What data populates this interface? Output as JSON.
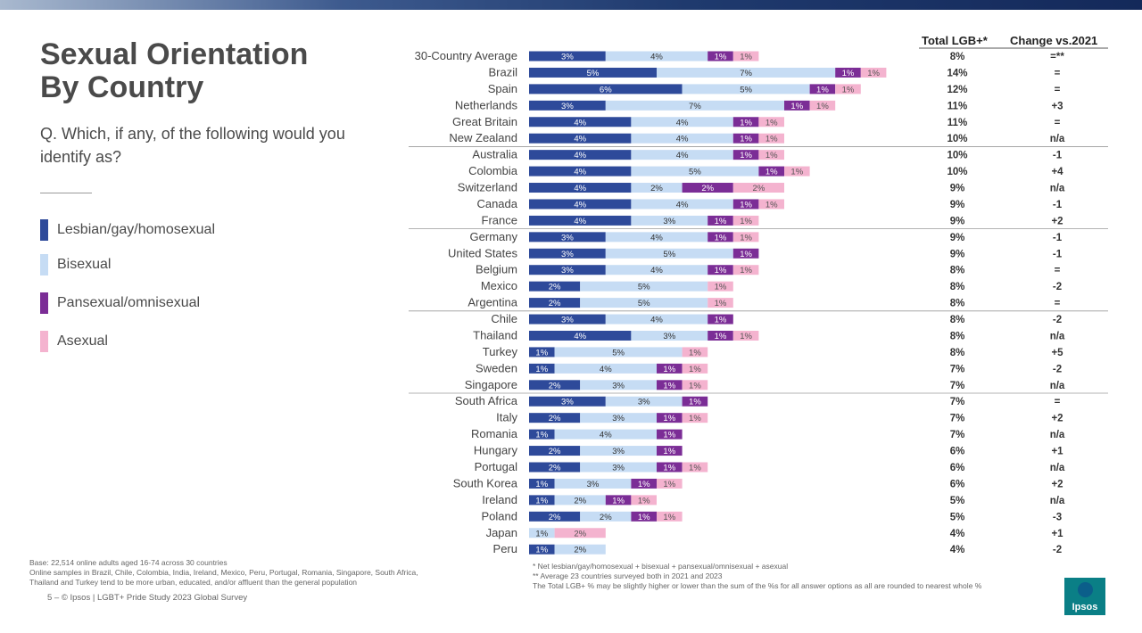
{
  "page": {
    "title_line1": "Sexual Orientation",
    "title_line2": "By Country",
    "question": "Q. Which, if any, of the following would you identify as?",
    "col_total": "Total LGB+*",
    "col_change": "Change vs.2021",
    "footnote_base_1": "Base: 22,514 online adults aged 16-74 across 30 countries",
    "footnote_base_2": "Online samples in Brazil, Chile, Colombia, India, Ireland, Mexico, Peru, Portugal, Romania, Singapore, South Africa,",
    "footnote_base_3": "Thailand and Turkey tend to be more urban, educated, and/or affluent than the general population",
    "footer": "5 –   © Ipsos | LGBT+ Pride Study 2023 Global Survey",
    "note_1": "* Net lesbian/gay/homosexual + bisexual + pansexual/omnisexual + asexual",
    "note_2": "** Average 23 countries surveyed both in 2021 and 2023",
    "note_3": "The Total LGB+ % may be slightly higher or lower than the sum of the %s for all answer options as all are rounded to nearest whole %",
    "logo_text": "Ipsos"
  },
  "legend": [
    {
      "label": "Lesbian/gay/homosexual",
      "color": "#2e4a9a"
    },
    {
      "label": "Bisexual",
      "color": "#c6dcf4"
    },
    {
      "label": "Pansexual/omnisexual",
      "color": "#7b2d96"
    },
    {
      "label": "Asexual",
      "color": "#f4b3cf"
    }
  ],
  "chart_data": {
    "type": "bar",
    "stacked": true,
    "orientation": "horizontal",
    "categories": [
      "30-Country Average",
      "Brazil",
      "Spain",
      "Netherlands",
      "Great Britain",
      "New Zealand",
      "Australia",
      "Colombia",
      "Switzerland",
      "Canada",
      "France",
      "Germany",
      "United States",
      "Belgium",
      "Mexico",
      "Argentina",
      "Chile",
      "Thailand",
      "Turkey",
      "Sweden",
      "Singapore",
      "South Africa",
      "Italy",
      "Romania",
      "Hungary",
      "Portugal",
      "South Korea",
      "Ireland",
      "Poland",
      "Japan",
      "Peru"
    ],
    "series": [
      {
        "name": "Lesbian/gay/homosexual",
        "color": "#2e4a9a",
        "values": [
          3,
          5,
          6,
          3,
          4,
          4,
          4,
          4,
          4,
          4,
          4,
          3,
          3,
          3,
          2,
          2,
          3,
          4,
          1,
          1,
          2,
          3,
          2,
          1,
          2,
          2,
          1,
          1,
          2,
          null,
          1
        ]
      },
      {
        "name": "Bisexual",
        "color": "#c6dcf4",
        "values": [
          4,
          7,
          5,
          7,
          4,
          4,
          4,
          5,
          2,
          4,
          3,
          4,
          5,
          4,
          5,
          5,
          4,
          3,
          5,
          4,
          3,
          3,
          3,
          4,
          3,
          3,
          3,
          2,
          2,
          1,
          2
        ]
      },
      {
        "name": "Pansexual/omnisexual",
        "color": "#7b2d96",
        "values": [
          1,
          1,
          1,
          1,
          1,
          1,
          1,
          1,
          2,
          1,
          1,
          1,
          1,
          1,
          null,
          null,
          1,
          1,
          null,
          1,
          1,
          1,
          1,
          1,
          1,
          1,
          1,
          1,
          1,
          null,
          null
        ]
      },
      {
        "name": "Asexual",
        "color": "#f4b3cf",
        "values": [
          1,
          1,
          1,
          1,
          1,
          1,
          1,
          1,
          2,
          1,
          1,
          1,
          null,
          1,
          1,
          1,
          null,
          1,
          1,
          1,
          1,
          null,
          1,
          null,
          null,
          1,
          1,
          1,
          1,
          2,
          null
        ]
      }
    ],
    "total_lgb": [
      "8%",
      "14%",
      "12%",
      "11%",
      "11%",
      "10%",
      "10%",
      "10%",
      "9%",
      "9%",
      "9%",
      "9%",
      "9%",
      "8%",
      "8%",
      "8%",
      "8%",
      "8%",
      "8%",
      "7%",
      "7%",
      "7%",
      "7%",
      "7%",
      "6%",
      "6%",
      "6%",
      "5%",
      "5%",
      "4%",
      "4%"
    ],
    "change_vs_2021": [
      "=**",
      "=",
      "=",
      "+3",
      "=",
      "n/a",
      "-1",
      "+4",
      "n/a",
      "-1",
      "+2",
      "-1",
      "-1",
      "=",
      "-2",
      "=",
      "-2",
      "n/a",
      "+5",
      "-2",
      "n/a",
      "=",
      "+2",
      "n/a",
      "+1",
      "n/a",
      "+2",
      "n/a",
      "-3",
      "+1",
      "-2"
    ],
    "group_separators_after": [
      5,
      10,
      15,
      20
    ],
    "axis_max": 14
  }
}
